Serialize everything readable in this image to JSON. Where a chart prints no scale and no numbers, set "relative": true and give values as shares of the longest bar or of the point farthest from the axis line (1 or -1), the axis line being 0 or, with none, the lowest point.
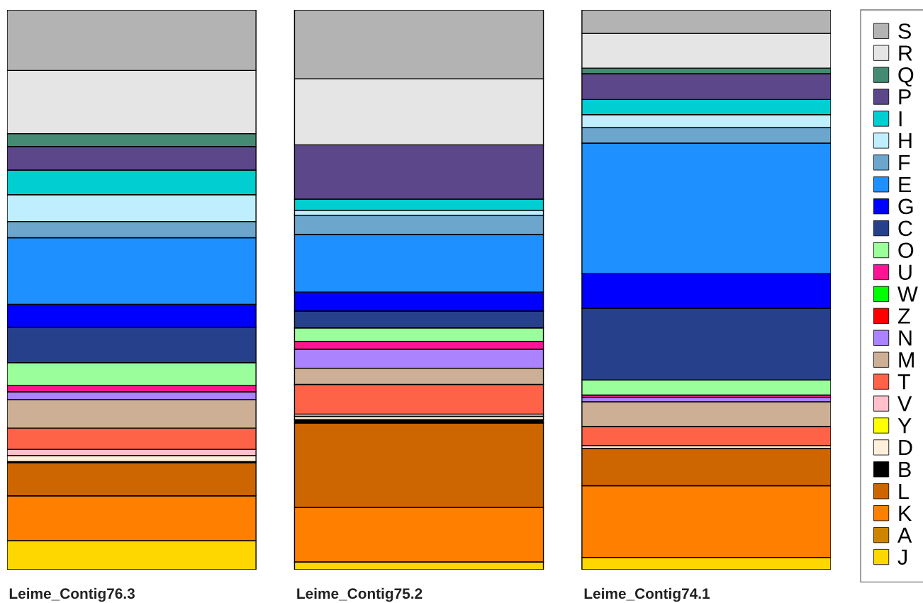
{
  "chart_data": {
    "type": "bar",
    "stacked": true,
    "relative": true,
    "legend": "right",
    "tick_labels": "x",
    "categories": [
      "Leime_Contig76.3",
      "Leime_Contig75.2",
      "Leime_Contig74.1"
    ],
    "series": [
      {
        "name": "J",
        "color": "#ffd700",
        "values": [
          0.052,
          0.014,
          0.022
        ]
      },
      {
        "name": "A",
        "color": "#cd8500",
        "values": [
          0,
          0,
          0
        ]
      },
      {
        "name": "K",
        "color": "#ff7f00",
        "values": [
          0.08,
          0.097,
          0.128
        ]
      },
      {
        "name": "L",
        "color": "#cd6600",
        "values": [
          0.059,
          0.151,
          0.067
        ]
      },
      {
        "name": "B",
        "color": "#000000",
        "values": [
          0.002,
          0.006,
          0
        ]
      },
      {
        "name": "D",
        "color": "#ffefdb",
        "values": [
          0.011,
          0.006,
          0.005
        ]
      },
      {
        "name": "Y",
        "color": "#ffff00",
        "values": [
          0,
          0,
          0
        ]
      },
      {
        "name": "V",
        "color": "#ffc0cb",
        "values": [
          0.011,
          0.004,
          0
        ]
      },
      {
        "name": "T",
        "color": "#ff6347",
        "values": [
          0.038,
          0.053,
          0.034
        ]
      },
      {
        "name": "M",
        "color": "#cdaf95",
        "values": [
          0.051,
          0.029,
          0.044
        ]
      },
      {
        "name": "N",
        "color": "#ab82ff",
        "values": [
          0.014,
          0.034,
          0.008
        ]
      },
      {
        "name": "Z",
        "color": "#ff0000",
        "values": [
          0,
          0,
          0
        ]
      },
      {
        "name": "W",
        "color": "#00ff00",
        "values": [
          0,
          0,
          0
        ]
      },
      {
        "name": "U",
        "color": "#ff1493",
        "values": [
          0.011,
          0.014,
          0.004
        ]
      },
      {
        "name": "O",
        "color": "#9aff9a",
        "values": [
          0.041,
          0.024,
          0.027
        ]
      },
      {
        "name": "C",
        "color": "#27408b",
        "values": [
          0.063,
          0.03,
          0.128
        ]
      },
      {
        "name": "G",
        "color": "#0000ff",
        "values": [
          0.041,
          0.034,
          0.062
        ]
      },
      {
        "name": "E",
        "color": "#1e90ff",
        "values": [
          0.119,
          0.103,
          0.233
        ]
      },
      {
        "name": "F",
        "color": "#6ca6cd",
        "values": [
          0.029,
          0.034,
          0.028
        ]
      },
      {
        "name": "H",
        "color": "#bfefff",
        "values": [
          0.048,
          0.009,
          0.023
        ]
      },
      {
        "name": "I",
        "color": "#00ced1",
        "values": [
          0.044,
          0.02,
          0.027
        ]
      },
      {
        "name": "P",
        "color": "#5d478b",
        "values": [
          0.042,
          0.097,
          0.046
        ]
      },
      {
        "name": "Q",
        "color": "#458b74",
        "values": [
          0.023,
          0,
          0.01
        ]
      },
      {
        "name": "R",
        "color": "#e5e5e5",
        "values": [
          0.113,
          0.118,
          0.062
        ]
      },
      {
        "name": "S",
        "color": "#b3b3b3",
        "values": [
          0.108,
          0.123,
          0.042
        ]
      }
    ]
  }
}
